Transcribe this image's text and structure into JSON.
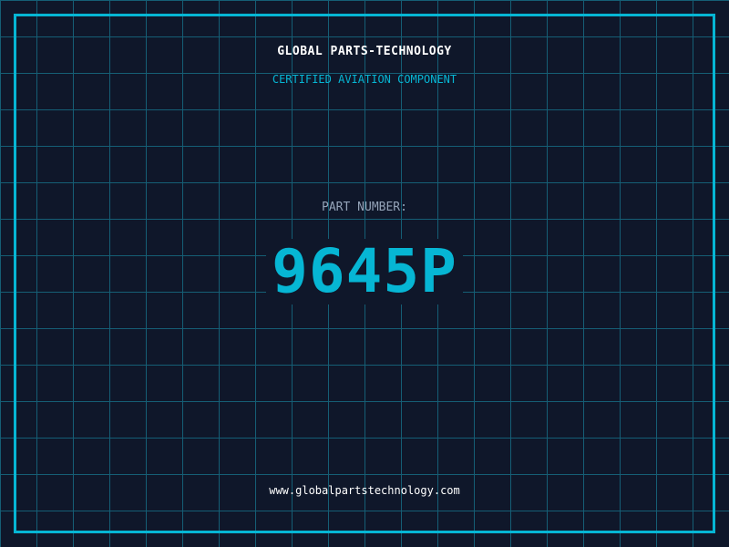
{
  "header": {
    "title": "GLOBAL PARTS-TECHNOLOGY",
    "subtitle": "CERTIFIED AVIATION COMPONENT"
  },
  "part": {
    "label": "PART NUMBER:",
    "number": "9645P"
  },
  "footer": {
    "url": "www.globalpartstechnology.com"
  },
  "colors": {
    "background": "#0f172a",
    "accent": "#06b6d4",
    "grid": "#155e75",
    "label": "#94a3b8"
  }
}
